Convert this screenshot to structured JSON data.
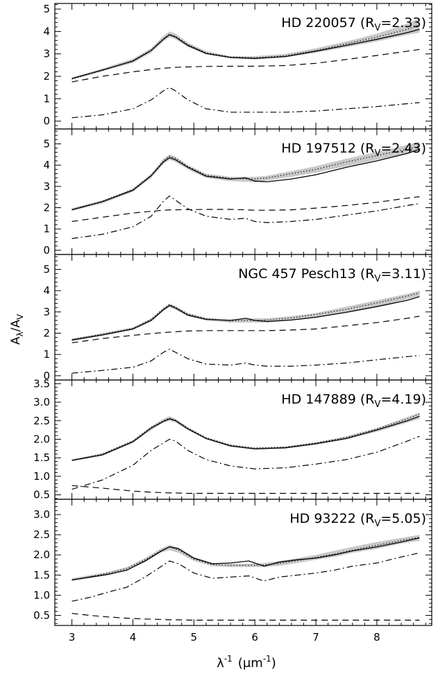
{
  "figure": {
    "ylabel": "A",
    "ylabel_sub1": "λ",
    "ylabel_mid": "/A",
    "ylabel_sub2": "V",
    "xlabel": "λ",
    "xlabel_sup": "-1",
    "xlabel_rest": "(μm",
    "xlabel_rest_sup": "-1",
    "xlabel_close": ")"
  },
  "chart_data": [
    {
      "type": "line",
      "title": "HD 220057 (R_V=2.33)",
      "label_main": "HD 220057 (R",
      "label_sub": "V",
      "label_tail": "=2.33)",
      "xlim": [
        2.72,
        8.9
      ],
      "ylim": [
        -0.35,
        5.25
      ],
      "xticks": [
        3,
        4,
        5,
        6,
        7,
        8
      ],
      "yticks": [
        0,
        1,
        2,
        3,
        4,
        5
      ],
      "x": [
        3.0,
        3.5,
        4.0,
        4.3,
        4.5,
        4.6,
        4.7,
        4.9,
        5.2,
        5.6,
        6.0,
        6.5,
        7.0,
        7.5,
        8.0,
        8.5,
        8.7
      ],
      "band": {
        "lower": [
          1.85,
          2.22,
          2.6,
          3.05,
          3.55,
          3.75,
          3.65,
          3.3,
          2.98,
          2.8,
          2.75,
          2.85,
          3.05,
          3.3,
          3.55,
          3.85,
          3.95
        ],
        "upper": [
          1.95,
          2.35,
          2.78,
          3.25,
          3.8,
          4.0,
          3.9,
          3.5,
          3.12,
          2.9,
          2.9,
          3.0,
          3.25,
          3.55,
          3.9,
          4.35,
          4.6
        ]
      },
      "series": [
        {
          "style": "solid",
          "values": [
            1.9,
            2.28,
            2.68,
            3.15,
            3.65,
            3.85,
            3.75,
            3.38,
            3.02,
            2.84,
            2.8,
            2.88,
            3.12,
            3.38,
            3.65,
            3.95,
            4.1
          ]
        },
        {
          "style": "dotted",
          "values": [
            1.88,
            2.26,
            2.7,
            3.18,
            3.68,
            3.88,
            3.78,
            3.42,
            3.05,
            2.86,
            2.82,
            2.92,
            3.15,
            3.45,
            3.75,
            4.1,
            4.3
          ]
        },
        {
          "style": "dashed",
          "values": [
            1.75,
            2.0,
            2.2,
            2.3,
            2.36,
            2.38,
            2.4,
            2.42,
            2.44,
            2.45,
            2.45,
            2.48,
            2.58,
            2.75,
            2.93,
            3.12,
            3.2
          ]
        },
        {
          "style": "dashdot",
          "values": [
            0.15,
            0.28,
            0.55,
            0.95,
            1.35,
            1.5,
            1.35,
            0.95,
            0.55,
            0.4,
            0.4,
            0.4,
            0.45,
            0.55,
            0.65,
            0.78,
            0.83
          ]
        }
      ]
    },
    {
      "type": "line",
      "title": "HD 197512 (R_V=2.43)",
      "label_main": "HD 197512 (R",
      "label_sub": "V",
      "label_tail": "=2.43)",
      "xlim": [
        2.72,
        8.9
      ],
      "ylim": [
        -0.2,
        5.7
      ],
      "xticks": [
        3,
        4,
        5,
        6,
        7,
        8
      ],
      "yticks": [
        0,
        1,
        2,
        3,
        4,
        5
      ],
      "x": [
        3.0,
        3.5,
        4.0,
        4.3,
        4.5,
        4.6,
        4.7,
        4.9,
        5.2,
        5.6,
        5.85,
        6.0,
        6.2,
        6.6,
        7.0,
        7.5,
        8.0,
        8.5,
        8.7
      ],
      "band": {
        "lower": [
          1.85,
          2.2,
          2.75,
          3.4,
          4.05,
          4.25,
          4.15,
          3.8,
          3.4,
          3.25,
          3.22,
          3.2,
          3.28,
          3.45,
          3.65,
          3.95,
          4.25,
          4.55,
          4.7
        ],
        "upper": [
          1.98,
          2.35,
          2.9,
          3.6,
          4.3,
          4.5,
          4.4,
          4.0,
          3.6,
          3.45,
          3.45,
          3.45,
          3.5,
          3.72,
          3.95,
          4.3,
          4.62,
          4.95,
          5.1
        ]
      },
      "series": [
        {
          "style": "solid",
          "values": [
            1.9,
            2.28,
            2.82,
            3.5,
            4.15,
            4.35,
            4.25,
            3.9,
            3.48,
            3.35,
            3.4,
            3.25,
            3.22,
            3.35,
            3.55,
            3.9,
            4.2,
            4.55,
            4.75
          ]
        },
        {
          "style": "dotted",
          "values": [
            1.92,
            2.3,
            2.85,
            3.52,
            4.2,
            4.42,
            4.32,
            3.95,
            3.52,
            3.38,
            3.36,
            3.35,
            3.4,
            3.6,
            3.8,
            4.15,
            4.45,
            4.75,
            4.9
          ]
        },
        {
          "style": "dashed",
          "values": [
            1.35,
            1.55,
            1.75,
            1.83,
            1.88,
            1.9,
            1.9,
            1.91,
            1.92,
            1.92,
            1.9,
            1.88,
            1.88,
            1.9,
            1.98,
            2.1,
            2.25,
            2.45,
            2.52
          ]
        },
        {
          "style": "dashdot",
          "values": [
            0.55,
            0.75,
            1.1,
            1.6,
            2.3,
            2.55,
            2.35,
            1.95,
            1.6,
            1.45,
            1.5,
            1.35,
            1.3,
            1.35,
            1.45,
            1.65,
            1.85,
            2.1,
            2.2
          ]
        }
      ]
    },
    {
      "type": "line",
      "title": "NGC 457 Pesch13 (R_V=3.11)",
      "label_main": "NGC 457 Pesch13 (R",
      "label_sub": "V",
      "label_tail": "=3.11)",
      "xlim": [
        2.72,
        8.9
      ],
      "ylim": [
        -0.2,
        5.7
      ],
      "xticks": [
        3,
        4,
        5,
        6,
        7,
        8
      ],
      "yticks": [
        0,
        1,
        2,
        3,
        4,
        5
      ],
      "x": [
        3.0,
        3.5,
        4.0,
        4.3,
        4.5,
        4.6,
        4.7,
        4.9,
        5.2,
        5.6,
        5.85,
        6.0,
        6.2,
        6.6,
        7.0,
        7.5,
        8.0,
        8.5,
        8.7
      ],
      "band": {
        "lower": [
          1.62,
          1.88,
          2.15,
          2.55,
          3.05,
          3.22,
          3.1,
          2.8,
          2.6,
          2.5,
          2.5,
          2.5,
          2.5,
          2.6,
          2.72,
          2.98,
          3.25,
          3.6,
          3.75
        ],
        "upper": [
          1.75,
          2.0,
          2.28,
          2.7,
          3.2,
          3.4,
          3.28,
          2.95,
          2.72,
          2.65,
          2.68,
          2.7,
          2.7,
          2.8,
          2.95,
          3.25,
          3.55,
          3.85,
          4.0
        ]
      },
      "series": [
        {
          "style": "solid",
          "values": [
            1.68,
            1.92,
            2.2,
            2.6,
            3.1,
            3.3,
            3.18,
            2.85,
            2.65,
            2.6,
            2.7,
            2.6,
            2.55,
            2.62,
            2.75,
            2.98,
            3.25,
            3.55,
            3.72
          ]
        },
        {
          "style": "dotted",
          "values": [
            1.7,
            1.95,
            2.22,
            2.65,
            3.15,
            3.35,
            3.22,
            2.9,
            2.68,
            2.58,
            2.6,
            2.6,
            2.62,
            2.72,
            2.88,
            3.12,
            3.42,
            3.75,
            3.9
          ]
        },
        {
          "style": "dashed",
          "values": [
            1.55,
            1.75,
            1.9,
            1.98,
            2.03,
            2.05,
            2.07,
            2.1,
            2.12,
            2.12,
            2.12,
            2.12,
            2.12,
            2.15,
            2.2,
            2.35,
            2.5,
            2.7,
            2.8
          ]
        },
        {
          "style": "dashdot",
          "values": [
            0.12,
            0.25,
            0.4,
            0.7,
            1.1,
            1.25,
            1.1,
            0.8,
            0.55,
            0.5,
            0.6,
            0.5,
            0.45,
            0.45,
            0.5,
            0.6,
            0.75,
            0.9,
            0.95
          ]
        }
      ]
    },
    {
      "type": "line",
      "title": "HD 147889 (R_V=4.19)",
      "label_main": "HD 147889 (R",
      "label_sub": "V",
      "label_tail": "=4.19)",
      "xlim": [
        2.72,
        8.9
      ],
      "ylim": [
        0.38,
        3.6
      ],
      "xticks": [
        3,
        4,
        5,
        6,
        7,
        8
      ],
      "yticks": [
        0.5,
        1.0,
        1.5,
        2.0,
        2.5,
        3.0,
        3.5
      ],
      "ytick_labels": [
        "0.5",
        "1.0",
        "1.5",
        "2.0",
        "2.5",
        "3.0",
        "3.5"
      ],
      "x": [
        3.0,
        3.5,
        4.0,
        4.3,
        4.5,
        4.6,
        4.7,
        4.9,
        5.2,
        5.6,
        6.0,
        6.5,
        7.0,
        7.5,
        8.0,
        8.5,
        8.7
      ],
      "band": {
        "lower": [
          1.4,
          1.55,
          1.9,
          2.25,
          2.45,
          2.5,
          2.45,
          2.25,
          2.0,
          1.8,
          1.72,
          1.75,
          1.85,
          2.0,
          2.2,
          2.45,
          2.55
        ],
        "upper": [
          1.46,
          1.62,
          1.98,
          2.35,
          2.55,
          2.62,
          2.55,
          2.33,
          2.06,
          1.86,
          1.78,
          1.8,
          1.92,
          2.08,
          2.3,
          2.6,
          2.72
        ]
      },
      "series": [
        {
          "style": "solid",
          "values": [
            1.43,
            1.58,
            1.93,
            2.3,
            2.48,
            2.55,
            2.5,
            2.28,
            2.02,
            1.82,
            1.74,
            1.77,
            1.88,
            2.02,
            2.25,
            2.5,
            2.62
          ]
        },
        {
          "style": "dotted",
          "values": [
            1.43,
            1.6,
            1.95,
            2.32,
            2.5,
            2.57,
            2.52,
            2.3,
            2.04,
            1.84,
            1.76,
            1.79,
            1.9,
            2.05,
            2.28,
            2.55,
            2.68
          ]
        },
        {
          "style": "dashed",
          "values": [
            0.75,
            0.68,
            0.6,
            0.57,
            0.56,
            0.55,
            0.55,
            0.54,
            0.54,
            0.54,
            0.54,
            0.54,
            0.54,
            0.54,
            0.54,
            0.54,
            0.54
          ]
        },
        {
          "style": "dashdot",
          "values": [
            0.65,
            0.9,
            1.3,
            1.7,
            1.9,
            2.0,
            1.95,
            1.7,
            1.45,
            1.28,
            1.2,
            1.23,
            1.33,
            1.45,
            1.65,
            1.95,
            2.08
          ]
        }
      ]
    },
    {
      "type": "line",
      "title": "HD 93222 (R_V=5.05)",
      "label_main": "HD 93222 (R",
      "label_sub": "V",
      "label_tail": "=5.05)",
      "xlim": [
        2.72,
        8.9
      ],
      "ylim": [
        0.25,
        3.38
      ],
      "xticks": [
        3,
        4,
        5,
        6,
        7,
        8
      ],
      "xtick_labels": [
        "3",
        "4",
        "5",
        "6",
        "7",
        "8"
      ],
      "yticks": [
        0.5,
        1.0,
        1.5,
        2.0,
        2.5,
        3.0
      ],
      "ytick_labels": [
        "0.5",
        "1.0",
        "1.5",
        "2.0",
        "2.5",
        "3.0"
      ],
      "x": [
        3.0,
        3.3,
        3.6,
        3.9,
        4.2,
        4.45,
        4.6,
        4.75,
        5.0,
        5.3,
        5.6,
        5.9,
        6.15,
        6.4,
        6.7,
        7.0,
        7.3,
        7.6,
        8.0,
        8.4,
        8.7
      ],
      "band": {
        "lower": [
          1.35,
          1.42,
          1.5,
          1.62,
          1.82,
          2.05,
          2.12,
          2.05,
          1.85,
          1.72,
          1.7,
          1.7,
          1.7,
          1.73,
          1.8,
          1.88,
          1.95,
          2.05,
          2.15,
          2.28,
          2.35
        ],
        "upper": [
          1.42,
          1.5,
          1.58,
          1.7,
          1.92,
          2.15,
          2.25,
          2.18,
          1.95,
          1.8,
          1.78,
          1.78,
          1.8,
          1.85,
          1.92,
          2.0,
          2.1,
          2.2,
          2.32,
          2.42,
          2.5
        ]
      },
      "series": [
        {
          "style": "solid",
          "values": [
            1.38,
            1.45,
            1.52,
            1.62,
            1.85,
            2.08,
            2.2,
            2.15,
            1.92,
            1.78,
            1.8,
            1.85,
            1.72,
            1.82,
            1.88,
            1.92,
            2.0,
            2.1,
            2.2,
            2.32,
            2.42
          ]
        },
        {
          "style": "dotted",
          "values": [
            1.38,
            1.46,
            1.55,
            1.66,
            1.88,
            2.1,
            2.2,
            2.12,
            1.9,
            1.76,
            1.74,
            1.74,
            1.75,
            1.79,
            1.86,
            1.94,
            2.02,
            2.12,
            2.24,
            2.36,
            2.44
          ]
        },
        {
          "style": "dashed",
          "values": [
            0.55,
            0.5,
            0.46,
            0.43,
            0.41,
            0.4,
            0.39,
            0.39,
            0.38,
            0.38,
            0.38,
            0.38,
            0.38,
            0.38,
            0.38,
            0.38,
            0.38,
            0.38,
            0.38,
            0.38,
            0.38
          ]
        },
        {
          "style": "dashdot",
          "values": [
            0.85,
            0.95,
            1.08,
            1.2,
            1.45,
            1.7,
            1.85,
            1.78,
            1.55,
            1.42,
            1.45,
            1.48,
            1.35,
            1.45,
            1.5,
            1.55,
            1.62,
            1.72,
            1.8,
            1.95,
            2.05
          ]
        }
      ]
    }
  ]
}
